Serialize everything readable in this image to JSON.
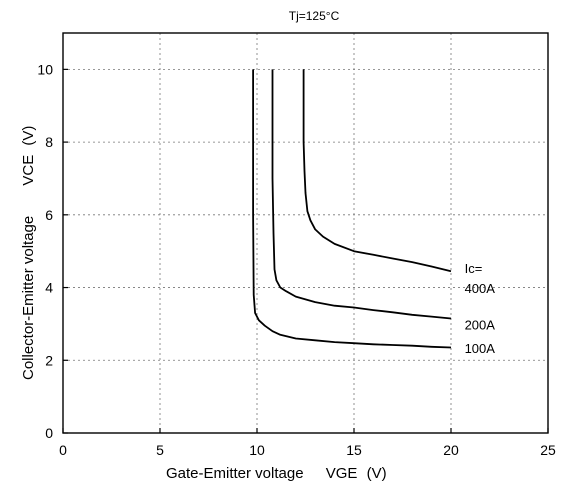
{
  "chart_data": {
    "type": "line",
    "title": "Tj=125°C",
    "xlabel": "Gate-Emitter voltage",
    "xlabel_symbol": "VGE",
    "xlabel_unit": "(V)",
    "ylabel": "Collector-Emitter voltage",
    "ylabel_symbol": "VCE",
    "ylabel_unit": "(V)",
    "xlim": [
      0,
      25
    ],
    "ylim": [
      0,
      11
    ],
    "xticks": [
      0,
      5,
      10,
      15,
      20,
      25
    ],
    "yticks": [
      0,
      2,
      4,
      6,
      8,
      10
    ],
    "grid": true,
    "series": [
      {
        "name": "400A",
        "x": [
          12.4,
          12.4,
          12.45,
          12.5,
          12.6,
          12.75,
          13.0,
          13.4,
          14.0,
          15.0,
          16.0,
          17.0,
          18.0,
          19.0,
          20.0
        ],
        "y": [
          10.0,
          8.0,
          7.2,
          6.6,
          6.1,
          5.85,
          5.6,
          5.4,
          5.2,
          5.0,
          4.9,
          4.8,
          4.7,
          4.58,
          4.45
        ]
      },
      {
        "name": "200A",
        "x": [
          10.8,
          10.8,
          10.85,
          10.9,
          11.0,
          11.2,
          11.5,
          12.0,
          13.0,
          14.0,
          15.0,
          16.0,
          17.0,
          18.0,
          19.0,
          20.0
        ],
        "y": [
          10.0,
          7.0,
          5.5,
          4.5,
          4.2,
          4.0,
          3.9,
          3.75,
          3.6,
          3.5,
          3.45,
          3.38,
          3.32,
          3.25,
          3.2,
          3.15
        ]
      },
      {
        "name": "100A",
        "x": [
          9.8,
          9.8,
          9.83,
          9.9,
          10.1,
          10.4,
          10.8,
          11.2,
          12.0,
          13.0,
          14.0,
          15.0,
          16.0,
          17.0,
          18.0,
          19.0,
          20.0
        ],
        "y": [
          10.0,
          6.0,
          3.8,
          3.3,
          3.1,
          2.95,
          2.8,
          2.7,
          2.6,
          2.55,
          2.5,
          2.47,
          2.44,
          2.42,
          2.4,
          2.37,
          2.35
        ]
      }
    ],
    "annotations": [
      {
        "text": "Ic=",
        "x": 20.7,
        "y": 4.4
      },
      {
        "text": "400A",
        "x": 20.7,
        "y": 3.85
      },
      {
        "text": "200A",
        "x": 20.7,
        "y": 2.85
      },
      {
        "text": "100A",
        "x": 20.7,
        "y": 2.2
      }
    ]
  }
}
